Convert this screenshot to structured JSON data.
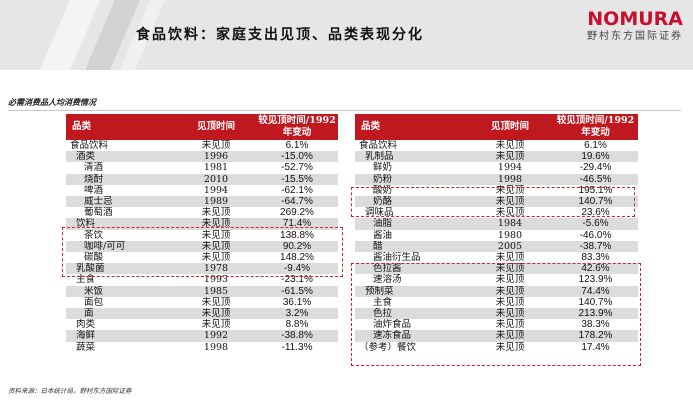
{
  "header": {
    "title": "食品饮料：家庭支出见顶、品类表现分化",
    "brand_name": "NOMURA",
    "brand_sub": "野村东方国际证券"
  },
  "subtitle": "必需消费品人均消费情况",
  "source": "资料来源：日本统计局，野村东方国际证券",
  "columns": {
    "category": "品类",
    "peak_time": "见顶时间",
    "change": "较见顶时间/1992年变动"
  },
  "left_table": [
    {
      "cat": "食品饮料",
      "peak": "未见顶",
      "chg": "6.1%",
      "indent": 0
    },
    {
      "cat": "酒类",
      "peak": "1996",
      "chg": "-15.0%",
      "indent": 1
    },
    {
      "cat": "清酒",
      "peak": "1981",
      "chg": "-52.7%",
      "indent": 2
    },
    {
      "cat": "烧酎",
      "peak": "2010",
      "chg": "-15.5%",
      "indent": 2
    },
    {
      "cat": "啤酒",
      "peak": "1994",
      "chg": "-62.1%",
      "indent": 2
    },
    {
      "cat": "威士忌",
      "peak": "1989",
      "chg": "-64.7%",
      "indent": 2
    },
    {
      "cat": "葡萄酒",
      "peak": "未见顶",
      "chg": "269.2%",
      "indent": 2
    },
    {
      "cat": "饮料",
      "peak": "未见顶",
      "chg": "71.4%",
      "indent": 1
    },
    {
      "cat": "茶饮",
      "peak": "未见顶",
      "chg": "138.8%",
      "indent": 2
    },
    {
      "cat": "咖啡/可可",
      "peak": "未见顶",
      "chg": "90.2%",
      "indent": 2
    },
    {
      "cat": "碳酸",
      "peak": "未见顶",
      "chg": "148.2%",
      "indent": 2
    },
    {
      "cat": "乳酸菌",
      "peak": "1978",
      "chg": "-9.4%",
      "indent": 1
    },
    {
      "cat": "主食",
      "peak": "1993",
      "chg": "-23.1%",
      "indent": 1
    },
    {
      "cat": "米饭",
      "peak": "1985",
      "chg": "-61.5%",
      "indent": 2
    },
    {
      "cat": "面包",
      "peak": "未见顶",
      "chg": "36.1%",
      "indent": 2
    },
    {
      "cat": "面",
      "peak": "未见顶",
      "chg": "3.2%",
      "indent": 2
    },
    {
      "cat": "肉类",
      "peak": "未见顶",
      "chg": "8.8%",
      "indent": 1
    },
    {
      "cat": "海鲜",
      "peak": "1992",
      "chg": "-38.8%",
      "indent": 1
    },
    {
      "cat": "蔬菜",
      "peak": "1998",
      "chg": "-11.3%",
      "indent": 1
    }
  ],
  "right_table": [
    {
      "cat": "食品饮料",
      "peak": "未见顶",
      "chg": "6.1%",
      "indent": 0
    },
    {
      "cat": "乳制品",
      "peak": "未见顶",
      "chg": "19.6%",
      "indent": 1
    },
    {
      "cat": "鲜奶",
      "peak": "1994",
      "chg": "-29.4%",
      "indent": 2
    },
    {
      "cat": "奶粉",
      "peak": "1998",
      "chg": "-46.5%",
      "indent": 2
    },
    {
      "cat": "酸奶",
      "peak": "未见顶",
      "chg": "195.1%",
      "indent": 2
    },
    {
      "cat": "奶酪",
      "peak": "未见顶",
      "chg": "140.7%",
      "indent": 2
    },
    {
      "cat": "调味品",
      "peak": "未见顶",
      "chg": "23.6%",
      "indent": 1
    },
    {
      "cat": "油脂",
      "peak": "1984",
      "chg": "-5.6%",
      "indent": 2
    },
    {
      "cat": "酱油",
      "peak": "1980",
      "chg": "-46.0%",
      "indent": 2
    },
    {
      "cat": "醋",
      "peak": "2005",
      "chg": "-38.7%",
      "indent": 2
    },
    {
      "cat": "酱油衍生品",
      "peak": "未见顶",
      "chg": "83.3%",
      "indent": 2
    },
    {
      "cat": "色拉酱",
      "peak": "未见顶",
      "chg": "42.6%",
      "indent": 2
    },
    {
      "cat": "速溶汤",
      "peak": "未见顶",
      "chg": "123.9%",
      "indent": 2
    },
    {
      "cat": "预制菜",
      "peak": "未见顶",
      "chg": "74.4%",
      "indent": 1
    },
    {
      "cat": "主食",
      "peak": "未见顶",
      "chg": "140.7%",
      "indent": 2
    },
    {
      "cat": "色拉",
      "peak": "未见顶",
      "chg": "213.9%",
      "indent": 2
    },
    {
      "cat": "油炸食品",
      "peak": "未见顶",
      "chg": "38.3%",
      "indent": 2
    },
    {
      "cat": "速冻食品",
      "peak": "未见顶",
      "chg": "178.2%",
      "indent": 2
    },
    {
      "cat": "（参考）餐饮",
      "peak": "未见顶",
      "chg": "17.4%",
      "indent": 0
    }
  ],
  "colors": {
    "header_red": "#c0181f",
    "brand_red": "#c8102e",
    "dash_red": "#d2232a",
    "stripe": "#dcdcdc"
  }
}
